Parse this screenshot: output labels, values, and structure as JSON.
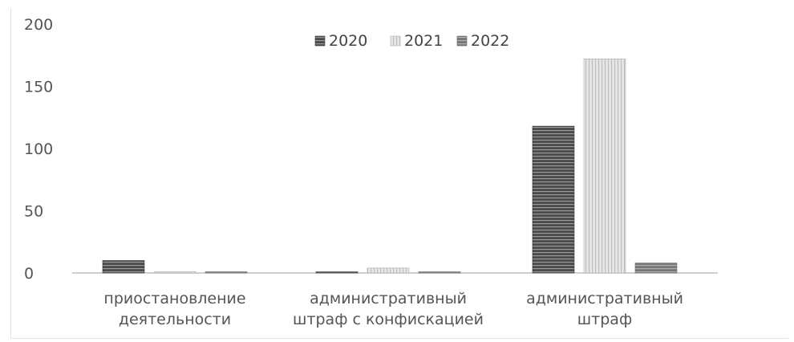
{
  "chart_data": {
    "type": "bar",
    "categories": [
      [
        "приостановление",
        "деятельности"
      ],
      [
        "административный",
        "штраф с конфискацией"
      ],
      [
        "административный",
        "штраф"
      ]
    ],
    "series": [
      {
        "name": "2020",
        "values": [
          10,
          0,
          118
        ],
        "pattern": "hstripe-dark"
      },
      {
        "name": "2021",
        "values": [
          0,
          4,
          172
        ],
        "pattern": "vstripe-light"
      },
      {
        "name": "2022",
        "values": [
          1,
          0,
          8
        ],
        "pattern": "hstripe-mid"
      }
    ],
    "y_ticks": [
      "0",
      "50",
      "100",
      "150",
      "200"
    ],
    "ylim": [
      0,
      200
    ],
    "title": "",
    "xlabel": "",
    "ylabel": "",
    "legend_position": "top-center",
    "grid": false
  },
  "colors": {
    "series_2020": "#5a5a5a",
    "series_2021": "#d6d6d6",
    "series_2022": "#8a8a8a",
    "axis": "#bfbfbf",
    "text": "#555555"
  }
}
